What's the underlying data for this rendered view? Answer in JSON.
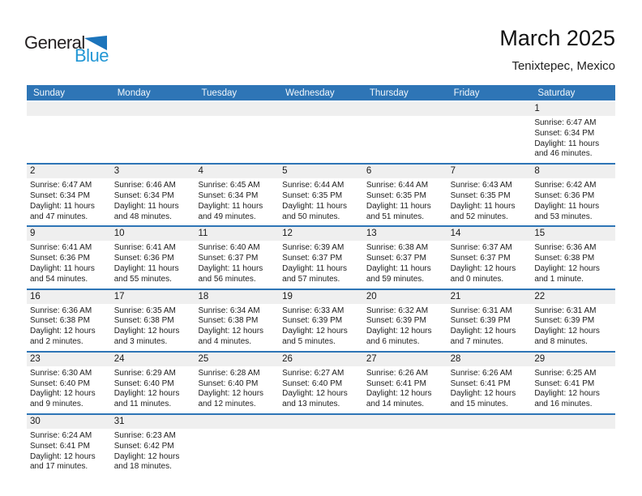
{
  "logo": {
    "word_top": "General",
    "word_bottom": "Blue"
  },
  "title_block": {
    "title": "March 2025",
    "subtitle": "Tenixtepec, Mexico"
  },
  "colors": {
    "header_bar": "#2E75B6",
    "week_separator": "#2E75B6",
    "day_band": "#EFEFEF",
    "logo_blue": "#2397D5",
    "logo_triangle": "#1C74BB",
    "header_text": "#F2F7FB"
  },
  "calendar": {
    "weekday_headers": [
      "Sunday",
      "Monday",
      "Tuesday",
      "Wednesday",
      "Thursday",
      "Friday",
      "Saturday"
    ],
    "weeks": [
      [
        null,
        null,
        null,
        null,
        null,
        null,
        {
          "day": "1",
          "lines": [
            "Sunrise: 6:47 AM",
            "Sunset: 6:34 PM",
            "Daylight: 11 hours",
            "and 46 minutes."
          ]
        }
      ],
      [
        {
          "day": "2",
          "lines": [
            "Sunrise: 6:47 AM",
            "Sunset: 6:34 PM",
            "Daylight: 11 hours",
            "and 47 minutes."
          ]
        },
        {
          "day": "3",
          "lines": [
            "Sunrise: 6:46 AM",
            "Sunset: 6:34 PM",
            "Daylight: 11 hours",
            "and 48 minutes."
          ]
        },
        {
          "day": "4",
          "lines": [
            "Sunrise: 6:45 AM",
            "Sunset: 6:34 PM",
            "Daylight: 11 hours",
            "and 49 minutes."
          ]
        },
        {
          "day": "5",
          "lines": [
            "Sunrise: 6:44 AM",
            "Sunset: 6:35 PM",
            "Daylight: 11 hours",
            "and 50 minutes."
          ]
        },
        {
          "day": "6",
          "lines": [
            "Sunrise: 6:44 AM",
            "Sunset: 6:35 PM",
            "Daylight: 11 hours",
            "and 51 minutes."
          ]
        },
        {
          "day": "7",
          "lines": [
            "Sunrise: 6:43 AM",
            "Sunset: 6:35 PM",
            "Daylight: 11 hours",
            "and 52 minutes."
          ]
        },
        {
          "day": "8",
          "lines": [
            "Sunrise: 6:42 AM",
            "Sunset: 6:36 PM",
            "Daylight: 11 hours",
            "and 53 minutes."
          ]
        }
      ],
      [
        {
          "day": "9",
          "lines": [
            "Sunrise: 6:41 AM",
            "Sunset: 6:36 PM",
            "Daylight: 11 hours",
            "and 54 minutes."
          ]
        },
        {
          "day": "10",
          "lines": [
            "Sunrise: 6:41 AM",
            "Sunset: 6:36 PM",
            "Daylight: 11 hours",
            "and 55 minutes."
          ]
        },
        {
          "day": "11",
          "lines": [
            "Sunrise: 6:40 AM",
            "Sunset: 6:37 PM",
            "Daylight: 11 hours",
            "and 56 minutes."
          ]
        },
        {
          "day": "12",
          "lines": [
            "Sunrise: 6:39 AM",
            "Sunset: 6:37 PM",
            "Daylight: 11 hours",
            "and 57 minutes."
          ]
        },
        {
          "day": "13",
          "lines": [
            "Sunrise: 6:38 AM",
            "Sunset: 6:37 PM",
            "Daylight: 11 hours",
            "and 59 minutes."
          ]
        },
        {
          "day": "14",
          "lines": [
            "Sunrise: 6:37 AM",
            "Sunset: 6:37 PM",
            "Daylight: 12 hours",
            "and 0 minutes."
          ]
        },
        {
          "day": "15",
          "lines": [
            "Sunrise: 6:36 AM",
            "Sunset: 6:38 PM",
            "Daylight: 12 hours",
            "and 1 minute."
          ]
        }
      ],
      [
        {
          "day": "16",
          "lines": [
            "Sunrise: 6:36 AM",
            "Sunset: 6:38 PM",
            "Daylight: 12 hours",
            "and 2 minutes."
          ]
        },
        {
          "day": "17",
          "lines": [
            "Sunrise: 6:35 AM",
            "Sunset: 6:38 PM",
            "Daylight: 12 hours",
            "and 3 minutes."
          ]
        },
        {
          "day": "18",
          "lines": [
            "Sunrise: 6:34 AM",
            "Sunset: 6:38 PM",
            "Daylight: 12 hours",
            "and 4 minutes."
          ]
        },
        {
          "day": "19",
          "lines": [
            "Sunrise: 6:33 AM",
            "Sunset: 6:39 PM",
            "Daylight: 12 hours",
            "and 5 minutes."
          ]
        },
        {
          "day": "20",
          "lines": [
            "Sunrise: 6:32 AM",
            "Sunset: 6:39 PM",
            "Daylight: 12 hours",
            "and 6 minutes."
          ]
        },
        {
          "day": "21",
          "lines": [
            "Sunrise: 6:31 AM",
            "Sunset: 6:39 PM",
            "Daylight: 12 hours",
            "and 7 minutes."
          ]
        },
        {
          "day": "22",
          "lines": [
            "Sunrise: 6:31 AM",
            "Sunset: 6:39 PM",
            "Daylight: 12 hours",
            "and 8 minutes."
          ]
        }
      ],
      [
        {
          "day": "23",
          "lines": [
            "Sunrise: 6:30 AM",
            "Sunset: 6:40 PM",
            "Daylight: 12 hours",
            "and 9 minutes."
          ]
        },
        {
          "day": "24",
          "lines": [
            "Sunrise: 6:29 AM",
            "Sunset: 6:40 PM",
            "Daylight: 12 hours",
            "and 11 minutes."
          ]
        },
        {
          "day": "25",
          "lines": [
            "Sunrise: 6:28 AM",
            "Sunset: 6:40 PM",
            "Daylight: 12 hours",
            "and 12 minutes."
          ]
        },
        {
          "day": "26",
          "lines": [
            "Sunrise: 6:27 AM",
            "Sunset: 6:40 PM",
            "Daylight: 12 hours",
            "and 13 minutes."
          ]
        },
        {
          "day": "27",
          "lines": [
            "Sunrise: 6:26 AM",
            "Sunset: 6:41 PM",
            "Daylight: 12 hours",
            "and 14 minutes."
          ]
        },
        {
          "day": "28",
          "lines": [
            "Sunrise: 6:26 AM",
            "Sunset: 6:41 PM",
            "Daylight: 12 hours",
            "and 15 minutes."
          ]
        },
        {
          "day": "29",
          "lines": [
            "Sunrise: 6:25 AM",
            "Sunset: 6:41 PM",
            "Daylight: 12 hours",
            "and 16 minutes."
          ]
        }
      ],
      [
        {
          "day": "30",
          "lines": [
            "Sunrise: 6:24 AM",
            "Sunset: 6:41 PM",
            "Daylight: 12 hours",
            "and 17 minutes."
          ]
        },
        {
          "day": "31",
          "lines": [
            "Sunrise: 6:23 AM",
            "Sunset: 6:42 PM",
            "Daylight: 12 hours",
            "and 18 minutes."
          ]
        },
        null,
        null,
        null,
        null,
        null
      ]
    ]
  }
}
